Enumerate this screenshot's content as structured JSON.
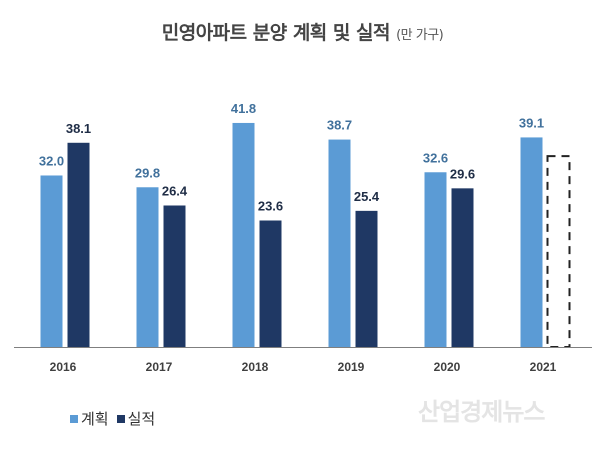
{
  "chart_data": {
    "type": "bar",
    "title": "민영아파트 분양 계획 및 실적",
    "unit": "(만 가구)",
    "categories": [
      "2016",
      "2017",
      "2018",
      "2019",
      "2020",
      "2021"
    ],
    "series": [
      {
        "name": "계획",
        "values": [
          32.0,
          29.8,
          41.8,
          38.7,
          32.6,
          39.1
        ],
        "color": "#5b9bd5",
        "label_color": "#41719c"
      },
      {
        "name": "실적",
        "values": [
          38.1,
          26.4,
          23.6,
          25.4,
          29.6,
          null
        ],
        "color": "#1f3864",
        "label_color": "#1f2d46"
      }
    ],
    "pending_placeholder": "2021 실적 (dashed outline)",
    "ylim": [
      0,
      44
    ],
    "grid": false,
    "legend": "bottom-left"
  },
  "watermark": "산업경제뉴스"
}
